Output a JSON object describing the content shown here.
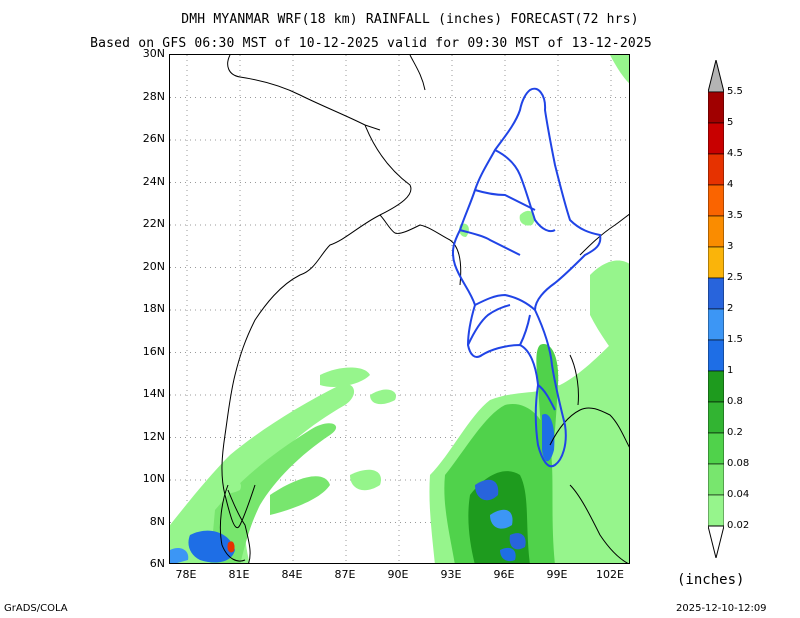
{
  "title_line1": "DMH MYANMAR WRF(18 km) RAINFALL (inches) FORECAST(72 hrs)",
  "title_line2": "Based on GFS 06:30 MST of 10-12-2025 valid for 09:30 MST of 13-12-2025",
  "lat_labels": [
    "30N",
    "28N",
    "26N",
    "24N",
    "22N",
    "20N",
    "18N",
    "16N",
    "14N",
    "12N",
    "10N",
    "8N",
    "6N"
  ],
  "lon_labels": [
    "78E",
    "81E",
    "84E",
    "87E",
    "90E",
    "93E",
    "96E",
    "99E",
    "102E"
  ],
  "colorbar": {
    "levels": [
      "0.02",
      "0.04",
      "0.08",
      "0.2",
      "0.8",
      "1",
      "1.5",
      "2",
      "2.5",
      "3",
      "3.5",
      "4",
      "4.5",
      "5",
      "5.5"
    ],
    "colors": [
      "#96f58c",
      "#78e66e",
      "#50d24b",
      "#32b432",
      "#1e9b1e",
      "#1e6ee6",
      "#3c96f5",
      "#2864dc",
      "#fab40a",
      "#fa8c00",
      "#fa6400",
      "#e63200",
      "#c80000",
      "#a00000"
    ],
    "cap_low": "#ffffff",
    "cap_high": "#b4b4b4",
    "unit": "(inches)"
  },
  "footer_left": "GrADS/COLA",
  "footer_right": "2025-12-10-12:09"
}
